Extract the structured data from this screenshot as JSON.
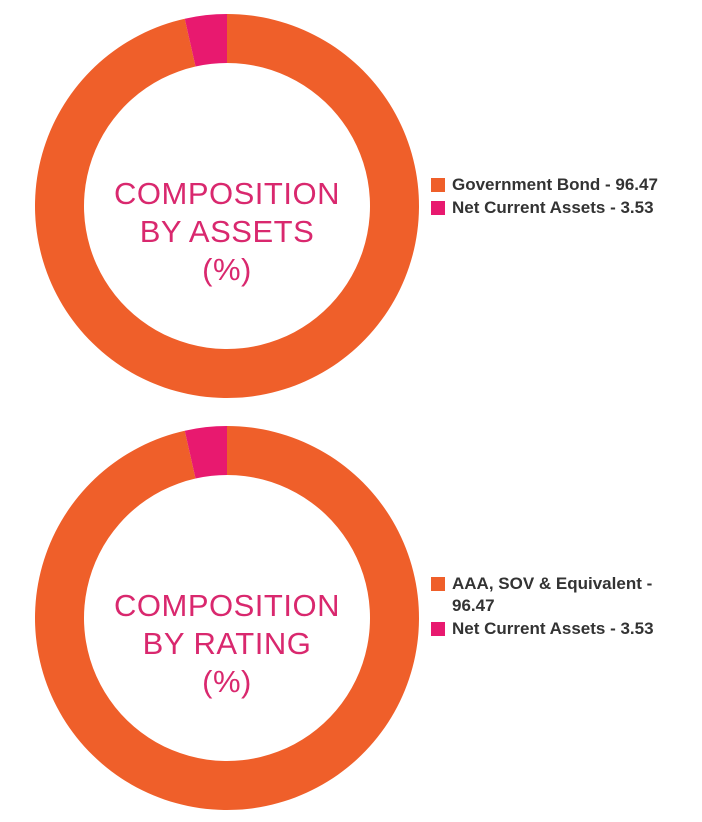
{
  "colors": {
    "primary": "#ef5f2a",
    "secondary": "#e8196f",
    "title": "#d9286e",
    "legend_text": "#333333"
  },
  "chart_data": [
    {
      "type": "pie",
      "title": "COMPOSITION BY ASSETS (%)",
      "title_lines": [
        "COMPOSITION",
        "BY ASSETS",
        "(%)"
      ],
      "donut": true,
      "legend_position": "right",
      "series": [
        {
          "label": "Government Bond - 96.47",
          "value": 96.47,
          "color": "#ef5f2a"
        },
        {
          "label": "Net Current Assets - 3.53",
          "value": 3.53,
          "color": "#e8196f"
        }
      ]
    },
    {
      "type": "pie",
      "title": "COMPOSITION BY RATING (%)",
      "title_lines": [
        "COMPOSITION",
        "BY RATING",
        "(%)"
      ],
      "donut": true,
      "legend_position": "right",
      "series": [
        {
          "label": "AAA, SOV & Equivalent - 96.47",
          "value": 96.47,
          "color": "#ef5f2a"
        },
        {
          "label": "Net Current Assets - 3.53",
          "value": 3.53,
          "color": "#e8196f"
        }
      ]
    }
  ]
}
